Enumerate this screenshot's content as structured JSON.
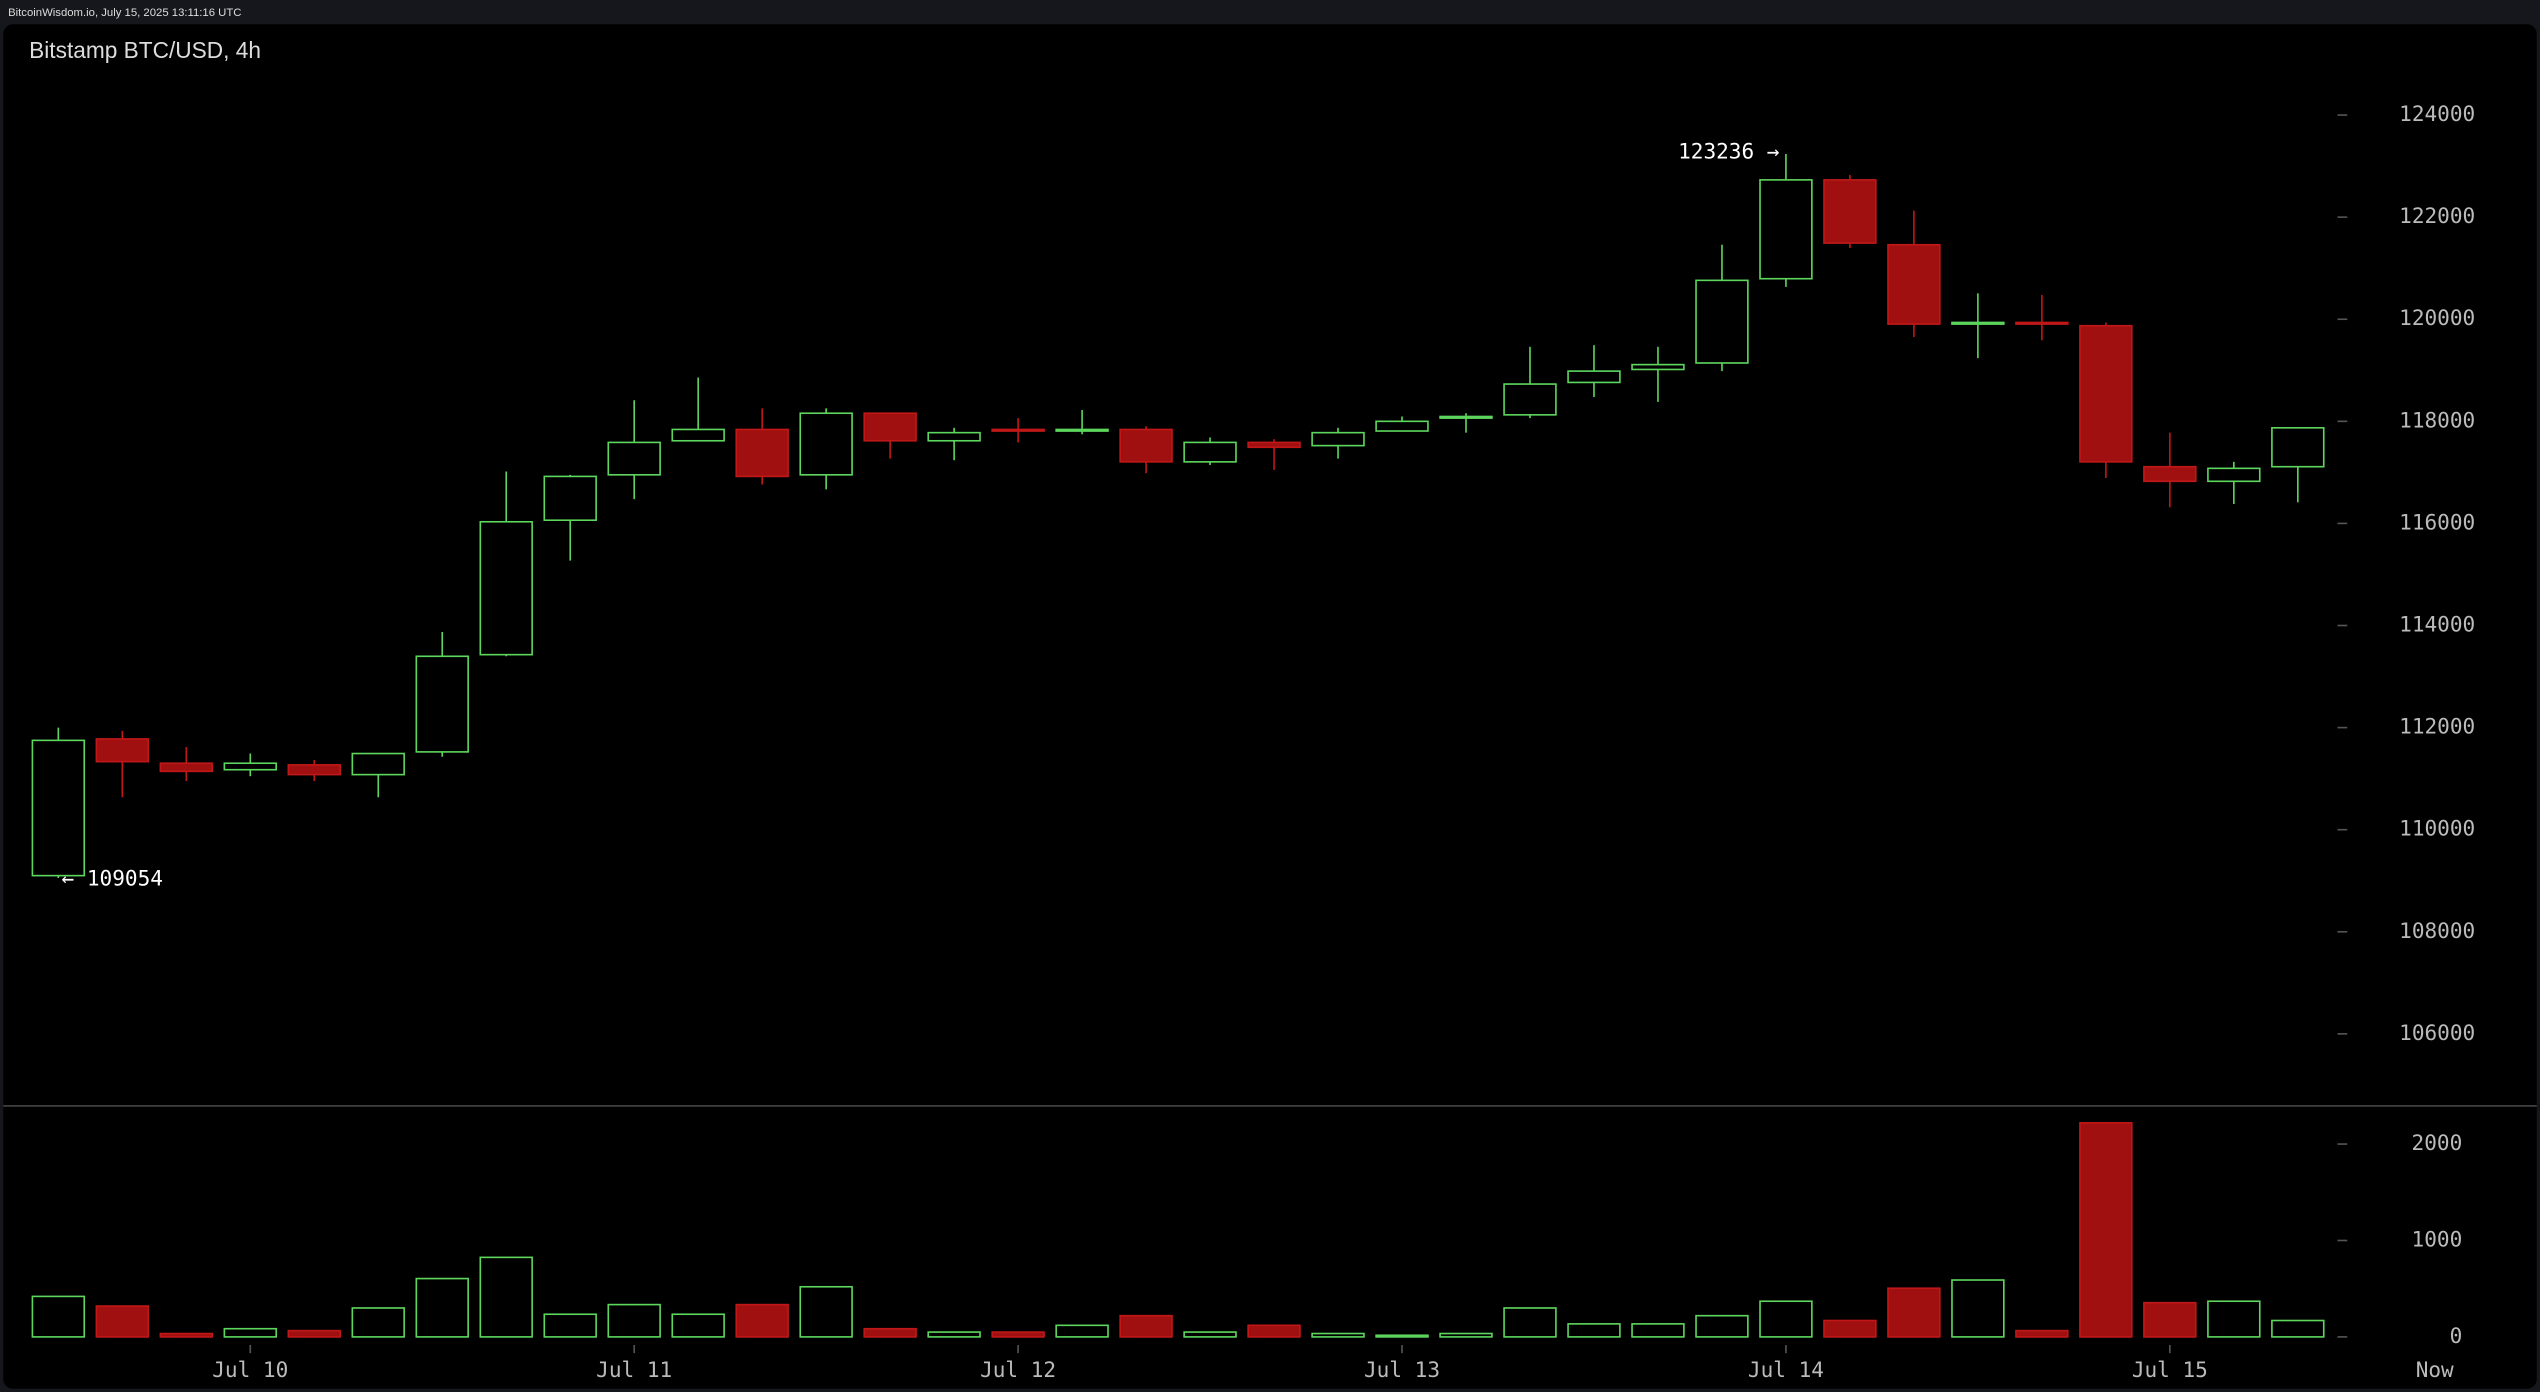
{
  "header": {
    "text": "BitcoinWisdom.io, July 15, 2025 13:11:16 UTC"
  },
  "chart_data": {
    "type": "candlestick",
    "title": "Bitstamp BTC/USD, 4h",
    "categories": [
      null,
      null,
      null,
      "Jul 10",
      null,
      null,
      null,
      null,
      null,
      "Jul 11",
      null,
      null,
      null,
      null,
      null,
      "Jul 12",
      null,
      null,
      null,
      null,
      null,
      "Jul 13",
      null,
      null,
      null,
      null,
      null,
      "Jul 14",
      null,
      null,
      null,
      null,
      null,
      "Jul 15",
      null,
      null
    ],
    "now_label": "Now",
    "open": [
      109100,
      111778,
      111302,
      111175,
      111270,
      111079,
      111524,
      113429,
      116063,
      116952,
      117619,
      117841,
      116952,
      118159,
      117619,
      117841,
      117810,
      117841,
      117206,
      117587,
      117524,
      117810,
      118063,
      118127,
      118762,
      119016,
      119143,
      120794,
      122730,
      121460,
      119905,
      119937,
      119873,
      117111,
      116825,
      117111
    ],
    "high": [
      112000,
      111937,
      111619,
      111492,
      111365,
      111492,
      113873,
      117016,
      116952,
      118413,
      118857,
      118254,
      118254,
      118159,
      117873,
      118063,
      118222,
      117905,
      117683,
      117651,
      117873,
      118095,
      118159,
      119460,
      119492,
      119460,
      121460,
      123236,
      122825,
      122127,
      120508,
      120476,
      119937,
      117778,
      117206,
      117873
    ],
    "low": [
      109054,
      110635,
      110952,
      111048,
      110952,
      110635,
      111429,
      113397,
      115270,
      116476,
      117619,
      116762,
      116667,
      117270,
      117238,
      117587,
      117746,
      116984,
      117143,
      117048,
      117270,
      117810,
      117778,
      118063,
      118476,
      118381,
      118984,
      120635,
      121397,
      119651,
      119238,
      119587,
      116889,
      116317,
      116381,
      116413
    ],
    "close": [
      111750,
      111333,
      111143,
      111302,
      111079,
      111492,
      113397,
      116032,
      116921,
      117587,
      117841,
      116921,
      118159,
      117619,
      117778,
      117810,
      117841,
      117206,
      117587,
      117492,
      117778,
      118000,
      118095,
      118730,
      118984,
      119111,
      120762,
      122730,
      121492,
      119905,
      119937,
      119905,
      117206,
      116825,
      117079,
      117873
    ],
    "up_color": "#5dd65d",
    "down_color": "#a01010",
    "ylim": [
      104600,
      125000
    ],
    "yticks": [
      106000,
      108000,
      110000,
      112000,
      114000,
      116000,
      118000,
      120000,
      122000,
      124000
    ],
    "annotations": {
      "high": "123236 →",
      "low": "← 109054"
    },
    "volume": {
      "values": [
        420,
        320,
        35,
        85,
        65,
        300,
        605,
        825,
        235,
        335,
        235,
        335,
        520,
        85,
        50,
        50,
        120,
        220,
        50,
        120,
        35,
        17,
        35,
        300,
        135,
        135,
        220,
        370,
        170,
        505,
        590,
        65,
        2220,
        355,
        370,
        170
      ],
      "ylim": [
        0,
        2500
      ],
      "yticks": [
        0,
        1000,
        2000
      ]
    }
  }
}
